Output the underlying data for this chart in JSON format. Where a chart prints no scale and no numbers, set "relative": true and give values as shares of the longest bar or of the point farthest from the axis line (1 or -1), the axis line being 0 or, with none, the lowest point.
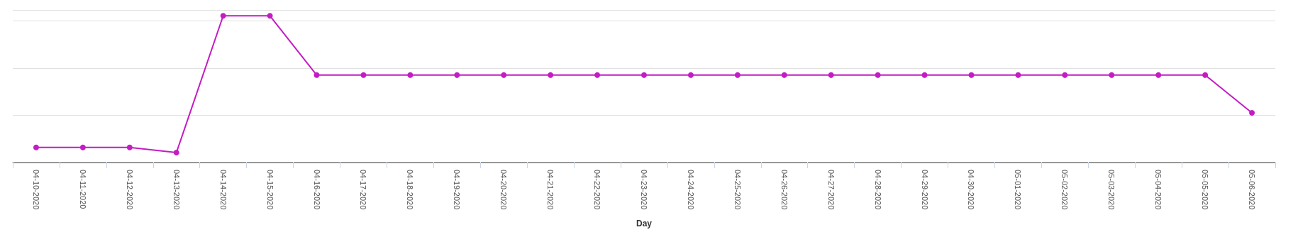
{
  "chart_data": {
    "type": "line",
    "xlabel": "Day",
    "relative": true,
    "grid": "y",
    "marker": "circle",
    "line_style": "solid",
    "categories": [
      "04-10-2020",
      "04-11-2020",
      "04-12-2020",
      "04-13-2020",
      "04-14-2020",
      "04-15-2020",
      "04-16-2020",
      "04-17-2020",
      "04-18-2020",
      "04-19-2020",
      "04-20-2020",
      "04-21-2020",
      "04-22-2020",
      "04-23-2020",
      "04-24-2020",
      "04-25-2020",
      "04-26-2020",
      "04-27-2020",
      "04-28-2020",
      "04-29-2020",
      "04-30-2020",
      "05-01-2020",
      "05-02-2020",
      "05-03-2020",
      "05-04-2020",
      "05-05-2020",
      "05-06-2020"
    ],
    "series": [
      {
        "color": "#c41bc4",
        "values": [
          0.103,
          0.103,
          0.103,
          0.068,
          1,
          1,
          0.596,
          0.596,
          0.596,
          0.596,
          0.596,
          0.596,
          0.596,
          0.596,
          0.596,
          0.596,
          0.596,
          0.596,
          0.596,
          0.596,
          0.596,
          0.596,
          0.596,
          0.596,
          0.596,
          0.596,
          0.339
        ]
      }
    ]
  }
}
